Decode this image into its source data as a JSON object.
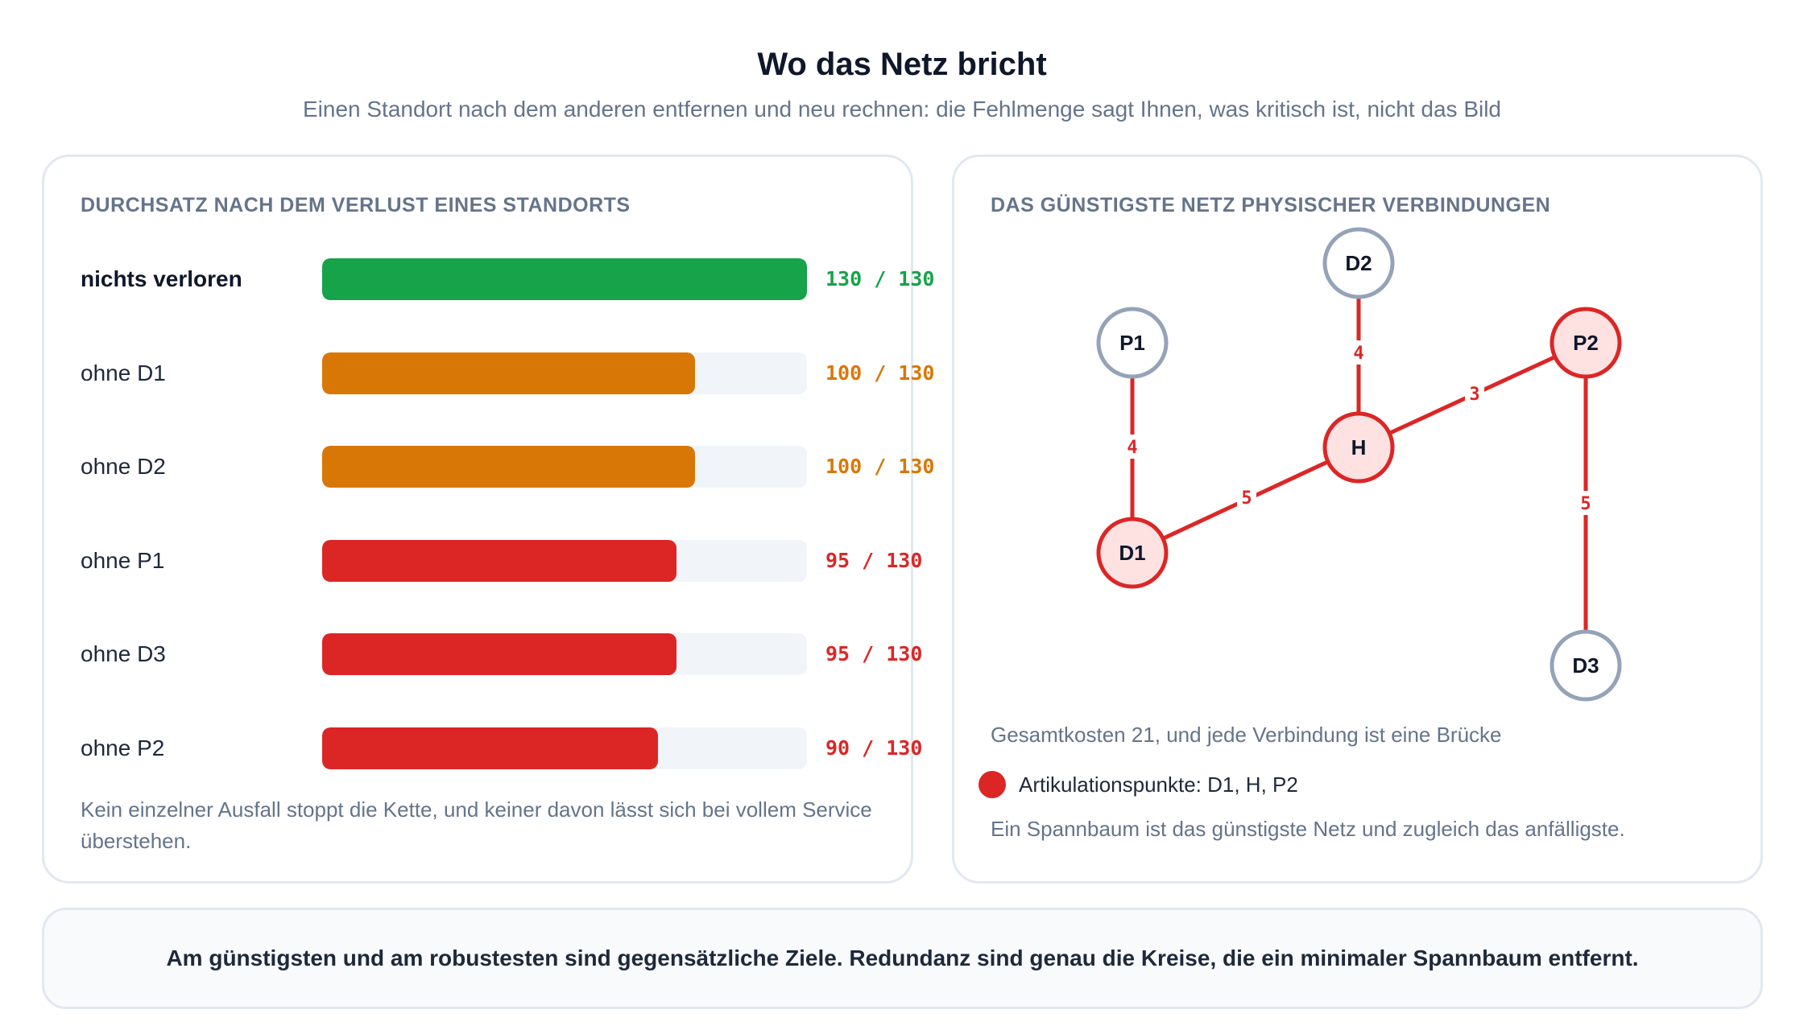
{
  "header": {
    "title": "Wo das Netz bricht",
    "subtitle": "Einen Standort nach dem anderen entfernen und neu rechnen: die Fehlmenge sagt Ihnen, was kritisch ist, nicht das Bild"
  },
  "left_panel": {
    "heading": "DURCHSATZ NACH DEM VERLUST EINES STANDORTS",
    "note": "Kein einzelner Ausfall stoppt die Kette, und keiner davon lässt sich bei vollem Service überstehen."
  },
  "chart_data": {
    "type": "bar",
    "orientation": "horizontal",
    "max": 130,
    "categories": [
      "nichts verloren",
      "ohne D1",
      "ohne D2",
      "ohne P1",
      "ohne D3",
      "ohne P2"
    ],
    "values": [
      130,
      100,
      100,
      95,
      95,
      90
    ],
    "value_labels": [
      "130 / 130",
      "100 / 130",
      "100 / 130",
      "95 / 130",
      "95 / 130",
      "90 / 130"
    ],
    "colors": [
      "#16a34a",
      "#d97706",
      "#d97706",
      "#dc2626",
      "#dc2626",
      "#dc2626"
    ]
  },
  "right_panel": {
    "heading": "DAS GÜNSTIGSTE NETZ PHYSISCHER VERBINDUNGEN",
    "cost_text": "Gesamtkosten 21, und jede Verbindung ist eine Brücke",
    "legend_text": "Artikulationspunkte: D1, H, P2",
    "note": "Ein Spannbaum ist das günstigste Netz und zugleich das anfälligste."
  },
  "graph": {
    "nodes": [
      {
        "id": "P1",
        "articulation": false
      },
      {
        "id": "D2",
        "articulation": false
      },
      {
        "id": "H",
        "articulation": true
      },
      {
        "id": "P2",
        "articulation": true
      },
      {
        "id": "D1",
        "articulation": true
      },
      {
        "id": "D3",
        "articulation": false
      }
    ],
    "edges": [
      {
        "from": "P1",
        "to": "D1",
        "cost": "4"
      },
      {
        "from": "D2",
        "to": "H",
        "cost": "4"
      },
      {
        "from": "D1",
        "to": "H",
        "cost": "5"
      },
      {
        "from": "H",
        "to": "P2",
        "cost": "3"
      },
      {
        "from": "P2",
        "to": "D3",
        "cost": "5"
      }
    ],
    "colors": {
      "edge": "#dc2626",
      "articulation_fill": "#fee2e2",
      "articulation_stroke": "#dc2626",
      "normal_fill": "#ffffff",
      "normal_stroke": "#94a3b8"
    }
  },
  "footer": {
    "text": "Am günstigsten und am robustesten sind gegensätzliche Ziele. Redundanz sind genau die Kreise, die ein minimaler Spannbaum entfernt."
  }
}
